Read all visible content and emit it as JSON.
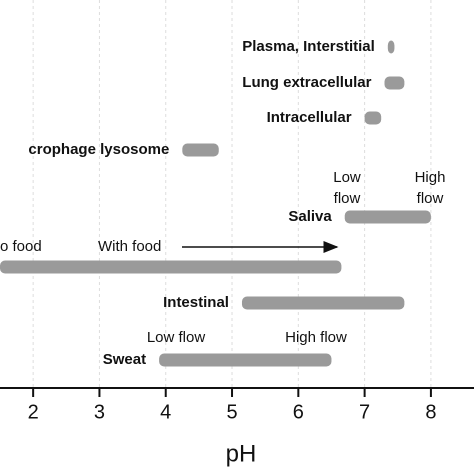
{
  "chart_data": {
    "type": "range_bar",
    "categories": [
      "Plasma, Interstitial",
      "Lung extracellular",
      "Intracellular",
      "crophage lysosome",
      "Saliva",
      "o food",
      "Intestinal",
      "Sweat"
    ],
    "starts": [
      7.35,
      7.3,
      7.0,
      4.25,
      6.7,
      1.5,
      5.15,
      3.9
    ],
    "ends": [
      7.45,
      7.6,
      7.25,
      4.8,
      8.0,
      6.65,
      7.6,
      6.5
    ],
    "color": "#9a9a9a",
    "xlim": [
      1.5,
      8.65
    ],
    "xticks": [
      2,
      3,
      4,
      5,
      6,
      7,
      8
    ],
    "xlabel": "pH",
    "grid": true,
    "annotations": [
      [
        "Low",
        "flow"
      ],
      [
        "High",
        "flow"
      ],
      [
        "With food"
      ],
      [
        "Low flow"
      ],
      [
        "High flow"
      ]
    ]
  }
}
